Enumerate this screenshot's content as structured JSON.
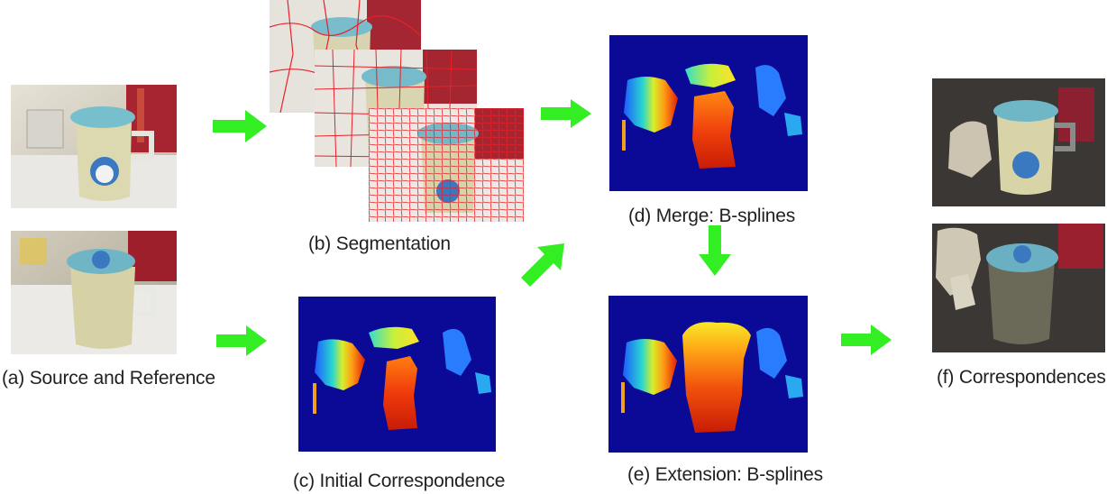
{
  "labels": {
    "a": "(a) Source and Reference",
    "b": "(b) Segmentation",
    "c": "(c) Initial Correspondence",
    "d": "(d) Merge: B-splines",
    "e": "(e) Extension: B-splines",
    "f": "(f) Correspondences"
  },
  "colors": {
    "arrow": "#33ee22",
    "flow_background": "#0a0a96",
    "segmentation_line": "#e8202a",
    "photo_wall": "#cfc9b8",
    "cup_body": "#d9d6ae",
    "cup_lid": "#6fb9c8",
    "red_can": "#b0232e",
    "dark_bg": "#3a3734"
  },
  "icons": {
    "arrow": "green-arrow-icon"
  }
}
